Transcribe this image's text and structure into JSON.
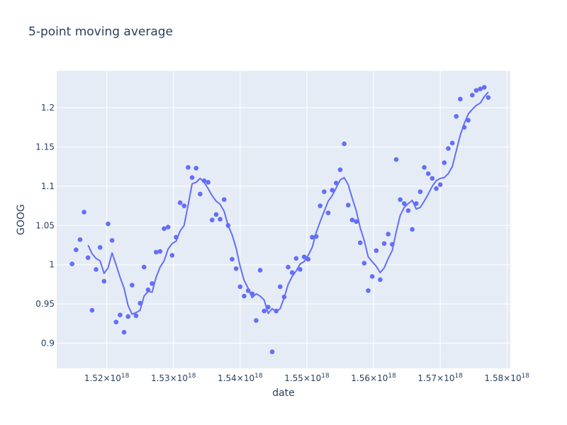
{
  "chart_data": {
    "type": "scatter",
    "title": "5-point moving average",
    "xlabel": "date",
    "ylabel": "GOOG",
    "x_range": [
      1.5125e+18,
      1.5805e+18
    ],
    "y_range": [
      0.868,
      1.247
    ],
    "x_ticks": [
      {
        "value": 1.52e+18,
        "mantissa": "1.52",
        "exp": "18"
      },
      {
        "value": 1.53e+18,
        "mantissa": "1.53",
        "exp": "18"
      },
      {
        "value": 1.54e+18,
        "mantissa": "1.54",
        "exp": "18"
      },
      {
        "value": 1.55e+18,
        "mantissa": "1.55",
        "exp": "18"
      },
      {
        "value": 1.56e+18,
        "mantissa": "1.56",
        "exp": "18"
      },
      {
        "value": 1.57e+18,
        "mantissa": "1.57",
        "exp": "18"
      },
      {
        "value": 1.58e+18,
        "mantissa": "1.58",
        "exp": "18"
      }
    ],
    "x_tick_base": "×10",
    "y_ticks": [
      {
        "value": 0.9,
        "label": "0.9"
      },
      {
        "value": 0.95,
        "label": "0.95"
      },
      {
        "value": 1.0,
        "label": "1"
      },
      {
        "value": 1.05,
        "label": "1.05"
      },
      {
        "value": 1.1,
        "label": "1.1"
      },
      {
        "value": 1.15,
        "label": "1.15"
      },
      {
        "value": 1.2,
        "label": "1.2"
      }
    ],
    "grid": true,
    "series": [
      {
        "name": "GOOG",
        "mode": "markers",
        "color": "#636efa",
        "x": [
          1.5148e+18,
          1.5154e+18,
          1.516e+18,
          1.5166e+18,
          1.5172e+18,
          1.5178e+18,
          1.5184e+18,
          1.519e+18,
          1.5196e+18,
          1.5202e+18,
          1.5208e+18,
          1.5214e+18,
          1.522e+18,
          1.5226e+18,
          1.5232e+18,
          1.5238e+18,
          1.5244e+18,
          1.525e+18,
          1.5256e+18,
          1.5262e+18,
          1.5268e+18,
          1.5274e+18,
          1.528e+18,
          1.5286e+18,
          1.5292e+18,
          1.5298e+18,
          1.5304e+18,
          1.531e+18,
          1.5316e+18,
          1.5322e+18,
          1.5328e+18,
          1.5334e+18,
          1.534e+18,
          1.5346e+18,
          1.5352e+18,
          1.5358e+18,
          1.5364e+18,
          1.537e+18,
          1.5376e+18,
          1.5382e+18,
          1.5388e+18,
          1.5394e+18,
          1.54e+18,
          1.5406e+18,
          1.5412e+18,
          1.5418e+18,
          1.5424e+18,
          1.543e+18,
          1.5436e+18,
          1.5442e+18,
          1.5448e+18,
          1.5454e+18,
          1.546e+18,
          1.5466e+18,
          1.5472e+18,
          1.5478e+18,
          1.5484e+18,
          1.549e+18,
          1.5496e+18,
          1.5502e+18,
          1.5508e+18,
          1.5514e+18,
          1.552e+18,
          1.5526e+18,
          1.5532e+18,
          1.5538e+18,
          1.5544e+18,
          1.555e+18,
          1.5556e+18,
          1.5562e+18,
          1.5568e+18,
          1.5574e+18,
          1.558e+18,
          1.5586e+18,
          1.5592e+18,
          1.5598e+18,
          1.5604e+18,
          1.561e+18,
          1.5616e+18,
          1.5622e+18,
          1.5628e+18,
          1.5634e+18,
          1.564e+18,
          1.5646e+18,
          1.5652e+18,
          1.5658e+18,
          1.5664e+18,
          1.567e+18,
          1.5676e+18,
          1.5682e+18,
          1.5688e+18,
          1.5694e+18,
          1.57e+18,
          1.5706e+18,
          1.5712e+18,
          1.5718e+18,
          1.5724e+18,
          1.573e+18,
          1.5736e+18,
          1.5742e+18,
          1.5748e+18,
          1.5754e+18,
          1.576e+18,
          1.5766e+18,
          1.5772e+18
        ],
        "y": [
          1.001,
          1.019,
          1.032,
          1.067,
          1.009,
          0.942,
          0.994,
          1.022,
          0.979,
          1.052,
          1.031,
          0.927,
          0.936,
          0.914,
          0.934,
          0.974,
          0.935,
          0.951,
          0.997,
          0.968,
          0.976,
          1.016,
          1.017,
          1.046,
          1.048,
          1.012,
          1.035,
          1.079,
          1.075,
          1.124,
          1.111,
          1.123,
          1.09,
          1.107,
          1.105,
          1.057,
          1.064,
          1.058,
          1.083,
          1.05,
          1.007,
          0.995,
          0.972,
          0.96,
          0.967,
          0.963,
          0.929,
          0.993,
          0.941,
          0.946,
          0.889,
          0.941,
          0.972,
          0.959,
          0.997,
          0.99,
          1.008,
          0.994,
          1.01,
          1.007,
          1.035,
          1.036,
          1.075,
          1.093,
          1.066,
          1.095,
          1.104,
          1.121,
          1.154,
          1.076,
          1.057,
          1.055,
          1.028,
          1.002,
          0.967,
          0.985,
          1.018,
          0.981,
          1.027,
          1.039,
          1.026,
          1.134,
          1.083,
          1.078,
          1.069,
          1.045,
          1.078,
          1.093,
          1.124,
          1.116,
          1.11,
          1.097,
          1.102,
          1.13,
          1.148,
          1.155,
          1.189,
          1.211,
          1.175,
          1.184,
          1.216,
          1.222,
          1.224,
          1.226,
          1.213
        ]
      },
      {
        "name": "5-point moving average",
        "mode": "lines",
        "color": "#636efa",
        "x": [
          1.5172e+18,
          1.5178e+18,
          1.5184e+18,
          1.519e+18,
          1.5196e+18,
          1.5202e+18,
          1.5208e+18,
          1.5214e+18,
          1.522e+18,
          1.5226e+18,
          1.5232e+18,
          1.5238e+18,
          1.5244e+18,
          1.525e+18,
          1.5256e+18,
          1.5262e+18,
          1.5268e+18,
          1.5274e+18,
          1.528e+18,
          1.5286e+18,
          1.5292e+18,
          1.5298e+18,
          1.5304e+18,
          1.531e+18,
          1.5316e+18,
          1.5322e+18,
          1.5328e+18,
          1.5334e+18,
          1.534e+18,
          1.5346e+18,
          1.5352e+18,
          1.5358e+18,
          1.5364e+18,
          1.537e+18,
          1.5376e+18,
          1.5382e+18,
          1.5388e+18,
          1.5394e+18,
          1.54e+18,
          1.5406e+18,
          1.5412e+18,
          1.5418e+18,
          1.5424e+18,
          1.543e+18,
          1.5436e+18,
          1.5442e+18,
          1.5448e+18,
          1.5454e+18,
          1.546e+18,
          1.5466e+18,
          1.5472e+18,
          1.5478e+18,
          1.5484e+18,
          1.549e+18,
          1.5496e+18,
          1.5502e+18,
          1.5508e+18,
          1.5514e+18,
          1.552e+18,
          1.5526e+18,
          1.5532e+18,
          1.5538e+18,
          1.5544e+18,
          1.555e+18,
          1.5556e+18,
          1.5562e+18,
          1.5568e+18,
          1.5574e+18,
          1.558e+18,
          1.5586e+18,
          1.5592e+18,
          1.5598e+18,
          1.5604e+18,
          1.561e+18,
          1.5616e+18,
          1.5622e+18,
          1.5628e+18,
          1.5634e+18,
          1.564e+18,
          1.5646e+18,
          1.5652e+18,
          1.5658e+18,
          1.5664e+18,
          1.567e+18,
          1.5676e+18,
          1.5682e+18,
          1.5688e+18,
          1.5694e+18,
          1.57e+18,
          1.5706e+18,
          1.5712e+18,
          1.5718e+18,
          1.5724e+18,
          1.573e+18,
          1.5736e+18,
          1.5742e+18,
          1.5748e+18,
          1.5754e+18,
          1.576e+18,
          1.5766e+18,
          1.5772e+18
        ],
        "y": [
          1.025,
          1.014,
          1.008,
          1.005,
          0.989,
          0.996,
          1.015,
          1.0,
          0.984,
          0.97,
          0.948,
          0.937,
          0.939,
          0.942,
          0.96,
          0.966,
          0.965,
          0.984,
          0.997,
          1.005,
          1.02,
          1.027,
          1.03,
          1.043,
          1.05,
          1.076,
          1.103,
          1.105,
          1.11,
          1.105,
          1.097,
          1.088,
          1.081,
          1.077,
          1.068,
          1.05,
          1.038,
          1.021,
          0.998,
          0.98,
          0.97,
          0.958,
          0.963,
          0.96,
          0.955,
          0.938,
          0.944,
          0.94,
          0.944,
          0.958,
          0.975,
          0.985,
          0.992,
          1.001,
          1.004,
          1.012,
          1.022,
          1.041,
          1.055,
          1.068,
          1.081,
          1.088,
          1.098,
          1.108,
          1.111,
          1.102,
          1.085,
          1.069,
          1.047,
          1.031,
          1.01,
          1.004,
          0.998,
          0.99,
          0.996,
          1.008,
          1.018,
          1.042,
          1.063,
          1.073,
          1.078,
          1.082,
          1.071,
          1.073,
          1.081,
          1.09,
          1.1,
          1.107,
          1.11,
          1.111,
          1.116,
          1.125,
          1.145,
          1.165,
          1.18,
          1.192,
          1.198,
          1.203,
          1.206,
          1.214,
          1.22
        ]
      }
    ]
  }
}
